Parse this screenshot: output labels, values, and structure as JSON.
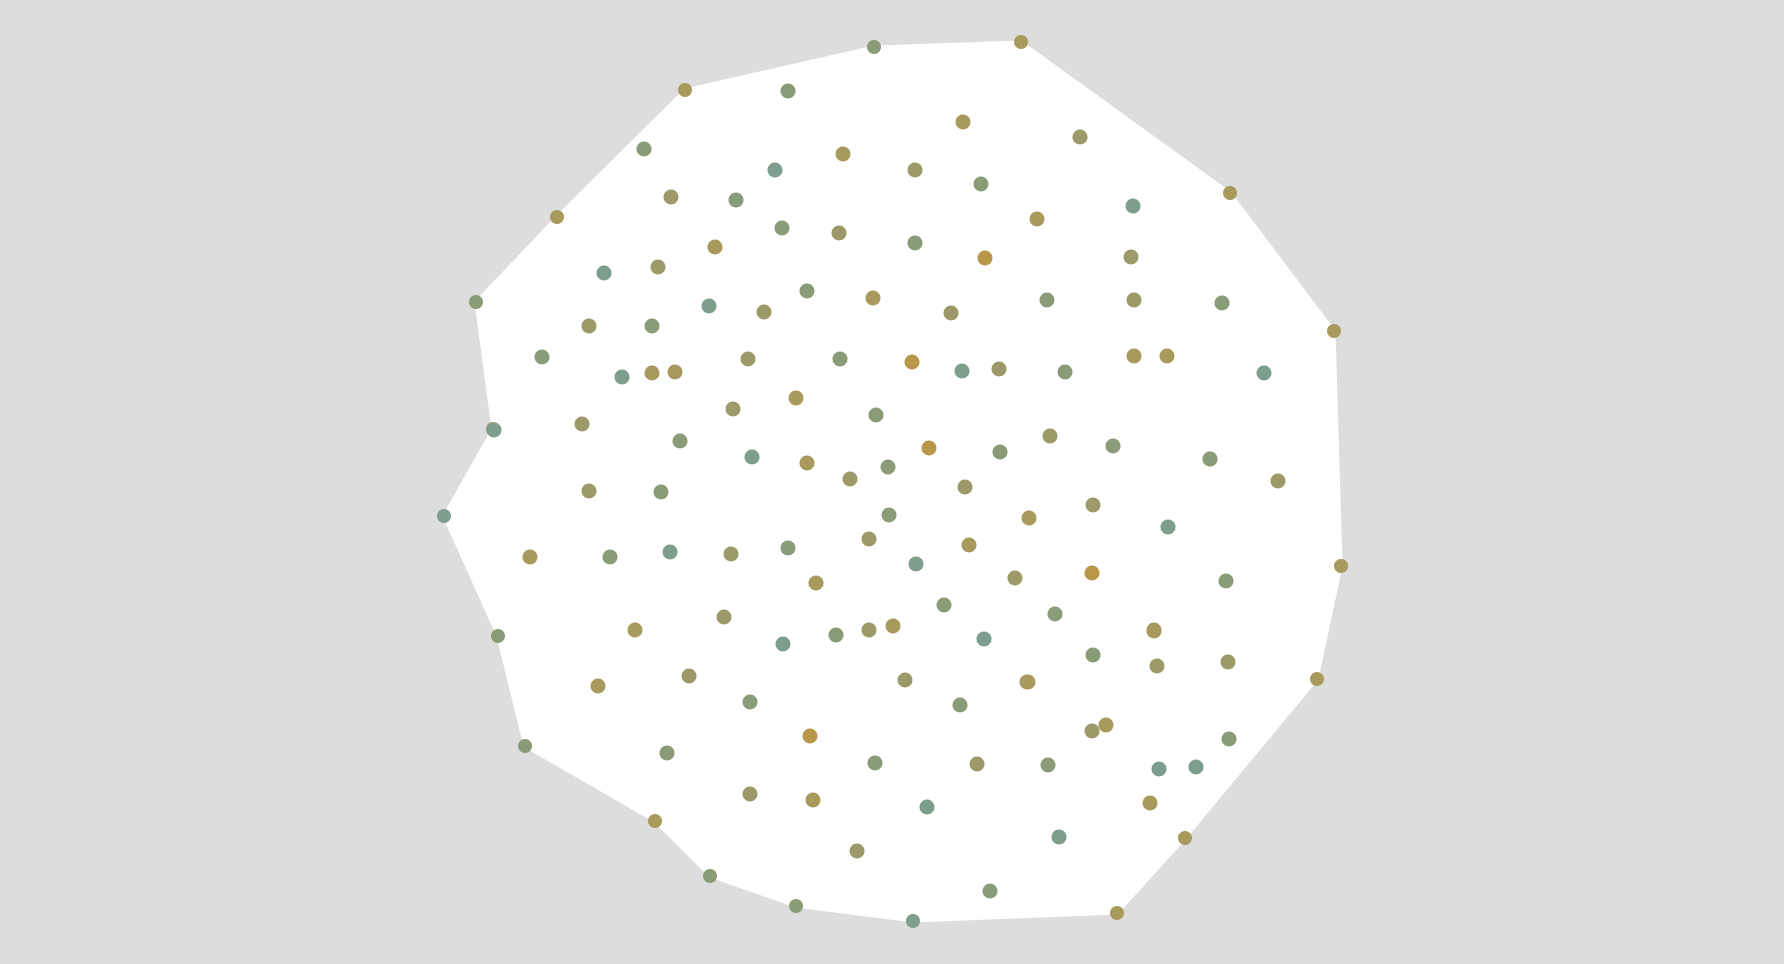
{
  "diagram": {
    "type": "network-graph",
    "background": "#dddddd",
    "edge_color": "#ffffff",
    "node_palette": [
      "#7d9e8c",
      "#8a9b78",
      "#9c9a68",
      "#a89a5c",
      "#b8974a"
    ]
  }
}
